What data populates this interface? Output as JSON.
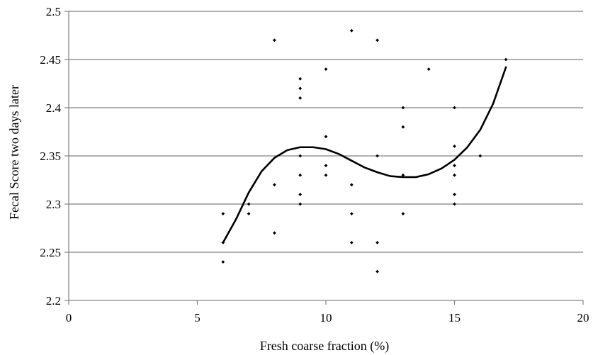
{
  "chart_data": {
    "type": "scatter",
    "title": "",
    "xlabel": "Fresh coarse fraction (%)",
    "ylabel": "Fecal Score two days later",
    "xlim": [
      0,
      20
    ],
    "ylim": [
      2.2,
      2.5
    ],
    "x_ticks": [
      0,
      5,
      10,
      15,
      20
    ],
    "y_ticks": [
      2.2,
      2.25,
      2.3,
      2.35,
      2.4,
      2.45,
      2.5
    ],
    "x_tick_labels": [
      "0",
      "5",
      "10",
      "15",
      "20"
    ],
    "y_tick_labels": [
      "2.2",
      "2.25",
      "2.3",
      "2.35",
      "2.4",
      "2.45",
      "2.5"
    ],
    "grid": "horizontal",
    "legend": "none",
    "colors": {
      "points": "#000000",
      "trend": "#000000",
      "grid": "#808080",
      "axes": "#808080"
    },
    "series": [
      {
        "type": "scatter",
        "points": [
          [
            6,
            2.29
          ],
          [
            6,
            2.26
          ],
          [
            6,
            2.24
          ],
          [
            7,
            2.3
          ],
          [
            7,
            2.29
          ],
          [
            8,
            2.47
          ],
          [
            8,
            2.32
          ],
          [
            8,
            2.27
          ],
          [
            9,
            2.43
          ],
          [
            9,
            2.42
          ],
          [
            9,
            2.41
          ],
          [
            9,
            2.35
          ],
          [
            9,
            2.33
          ],
          [
            9,
            2.31
          ],
          [
            9,
            2.3
          ],
          [
            10,
            2.44
          ],
          [
            10,
            2.37
          ],
          [
            10,
            2.34
          ],
          [
            10,
            2.33
          ],
          [
            11,
            2.48
          ],
          [
            11,
            2.32
          ],
          [
            11,
            2.29
          ],
          [
            11,
            2.26
          ],
          [
            12,
            2.47
          ],
          [
            12,
            2.35
          ],
          [
            12,
            2.26
          ],
          [
            12,
            2.23
          ],
          [
            13,
            2.4
          ],
          [
            13,
            2.38
          ],
          [
            13,
            2.33
          ],
          [
            13,
            2.29
          ],
          [
            14,
            2.44
          ],
          [
            15,
            2.4
          ],
          [
            15,
            2.36
          ],
          [
            15,
            2.34
          ],
          [
            15,
            2.33
          ],
          [
            15,
            2.31
          ],
          [
            15,
            2.3
          ],
          [
            16,
            2.35
          ],
          [
            17,
            2.45
          ]
        ]
      },
      {
        "type": "polynomial-trendline",
        "order": 3,
        "x_range": [
          6,
          17
        ],
        "curve": [
          [
            6,
            2.26
          ],
          [
            6.5,
            2.284
          ],
          [
            7,
            2.312
          ],
          [
            7.5,
            2.334
          ],
          [
            8,
            2.348
          ],
          [
            8.5,
            2.356
          ],
          [
            9,
            2.359
          ],
          [
            9.5,
            2.359
          ],
          [
            10,
            2.357
          ],
          [
            10.5,
            2.352
          ],
          [
            11,
            2.345
          ],
          [
            11.5,
            2.338
          ],
          [
            12,
            2.333
          ],
          [
            12.5,
            2.329
          ],
          [
            13,
            2.328
          ],
          [
            13.5,
            2.328
          ],
          [
            14,
            2.331
          ],
          [
            14.5,
            2.337
          ],
          [
            15,
            2.346
          ],
          [
            15.5,
            2.359
          ],
          [
            16,
            2.377
          ],
          [
            16.5,
            2.404
          ],
          [
            17,
            2.442
          ]
        ]
      }
    ]
  }
}
